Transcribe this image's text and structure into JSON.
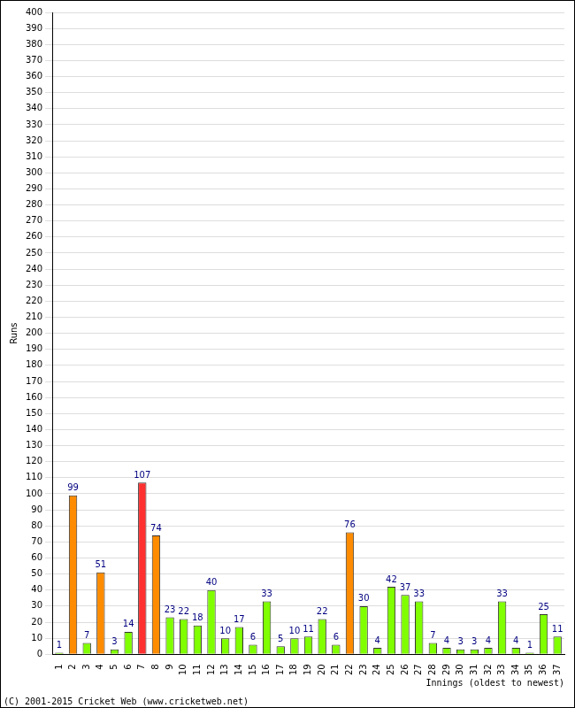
{
  "chart_data": {
    "type": "bar",
    "y_label": "Runs",
    "x_label": "Innings (oldest to newest)",
    "annotations": [
      "(C) 2001-2015 Cricket Web (www.cricketweb.net)"
    ],
    "categories": [
      "1",
      "2",
      "3",
      "4",
      "5",
      "6",
      "7",
      "8",
      "9",
      "10",
      "11",
      "12",
      "13",
      "14",
      "15",
      "16",
      "17",
      "18",
      "19",
      "20",
      "21",
      "22",
      "23",
      "24",
      "25",
      "26",
      "27",
      "28",
      "29",
      "30",
      "31",
      "32",
      "33",
      "34",
      "35",
      "36",
      "37"
    ],
    "values": [
      1,
      99,
      7,
      51,
      3,
      14,
      107,
      74,
      23,
      22,
      18,
      40,
      10,
      17,
      6,
      33,
      5,
      10,
      11,
      22,
      6,
      76,
      30,
      4,
      42,
      37,
      33,
      7,
      4,
      3,
      3,
      4,
      33,
      4,
      1,
      25,
      11
    ],
    "colors": [
      "#80ff00",
      "#ff8c00",
      "#80ff00",
      "#ff8c00",
      "#80ff00",
      "#80ff00",
      "#ff3030",
      "#ff8c00",
      "#80ff00",
      "#80ff00",
      "#80ff00",
      "#80ff00",
      "#80ff00",
      "#80ff00",
      "#80ff00",
      "#80ff00",
      "#80ff00",
      "#80ff00",
      "#80ff00",
      "#80ff00",
      "#80ff00",
      "#ff8c00",
      "#80ff00",
      "#80ff00",
      "#80ff00",
      "#80ff00",
      "#80ff00",
      "#80ff00",
      "#80ff00",
      "#80ff00",
      "#80ff00",
      "#80ff00",
      "#80ff00",
      "#80ff00",
      "#80ff00",
      "#80ff00",
      "#80ff00"
    ],
    "ylim": [
      0,
      400
    ],
    "yticks": [
      0,
      10,
      20,
      30,
      40,
      50,
      60,
      70,
      80,
      90,
      100,
      110,
      120,
      130,
      140,
      150,
      160,
      170,
      180,
      190,
      200,
      210,
      220,
      230,
      240,
      250,
      260,
      270,
      280,
      290,
      300,
      310,
      320,
      330,
      340,
      350,
      360,
      370,
      380,
      390,
      400
    ],
    "grid": true,
    "data_labels": true
  }
}
